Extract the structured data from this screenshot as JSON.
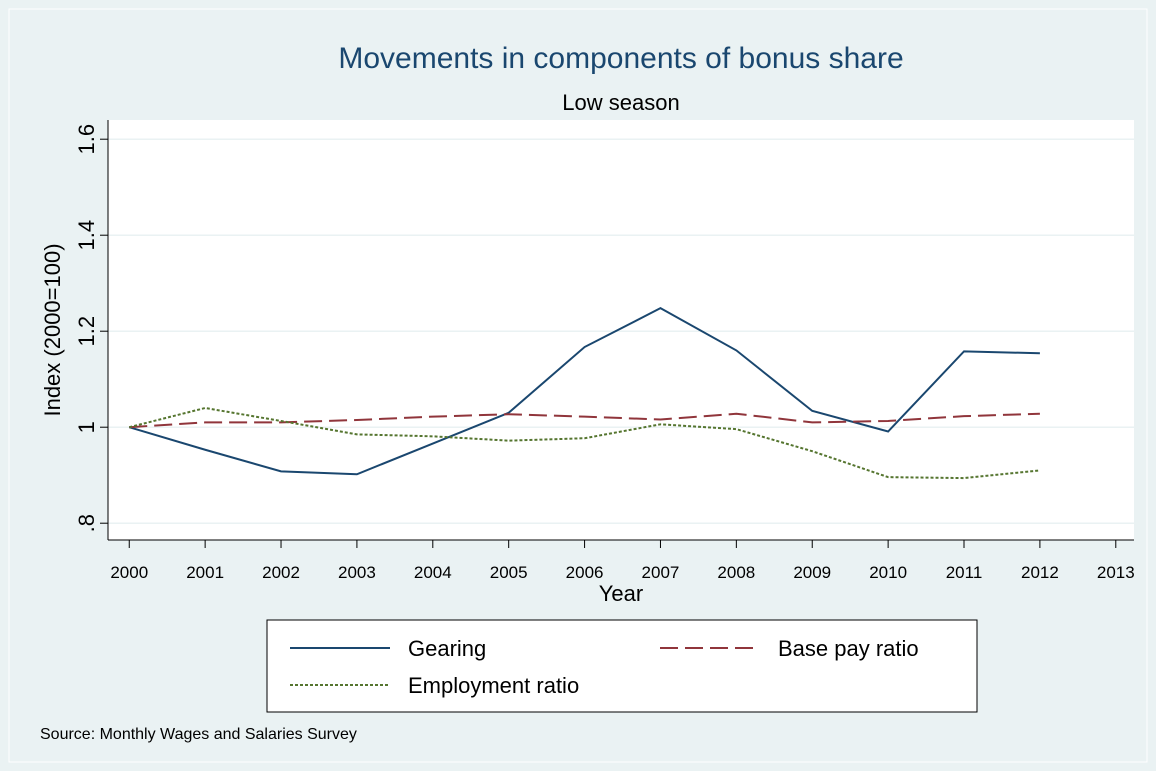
{
  "chart_data": {
    "type": "line",
    "title": "Movements in components of bonus share",
    "subtitle": "Low season",
    "x_label": "Year",
    "y_label": "Index (2000=100)",
    "source": "Source: Monthly Wages and Salaries Survey",
    "x": [
      2000,
      2001,
      2002,
      2003,
      2004,
      2005,
      2006,
      2007,
      2008,
      2009,
      2010,
      2011,
      2012
    ],
    "xlim": [
      1999.72,
      2013.24
    ],
    "xticks": [
      2000,
      2001,
      2002,
      2003,
      2004,
      2005,
      2006,
      2007,
      2008,
      2009,
      2010,
      2011,
      2012,
      2013
    ],
    "ylim": [
      0.765,
      1.64
    ],
    "yticks": [
      {
        "value": 0.8,
        "label": ".8"
      },
      1,
      1.2,
      1.4,
      1.6
    ],
    "grid": true,
    "series": [
      {
        "name": "Gearing",
        "color": "#1a476f",
        "dash": "solid",
        "values": [
          1.0,
          0.953,
          0.908,
          0.902,
          0.966,
          1.03,
          1.167,
          1.248,
          1.16,
          1.034,
          0.991,
          1.158,
          1.154
        ]
      },
      {
        "name": "Base pay ratio",
        "color": "#90353b",
        "dash": "dashed",
        "values": [
          1.0,
          1.01,
          1.01,
          1.015,
          1.022,
          1.027,
          1.022,
          1.016,
          1.028,
          1.01,
          1.013,
          1.023,
          1.028
        ]
      },
      {
        "name": "Employment ratio",
        "color": "#55752f",
        "dash": "dotted",
        "values": [
          1.0,
          1.04,
          1.013,
          0.985,
          0.981,
          0.972,
          0.977,
          1.006,
          0.996,
          0.95,
          0.896,
          0.894,
          0.91
        ]
      }
    ]
  }
}
